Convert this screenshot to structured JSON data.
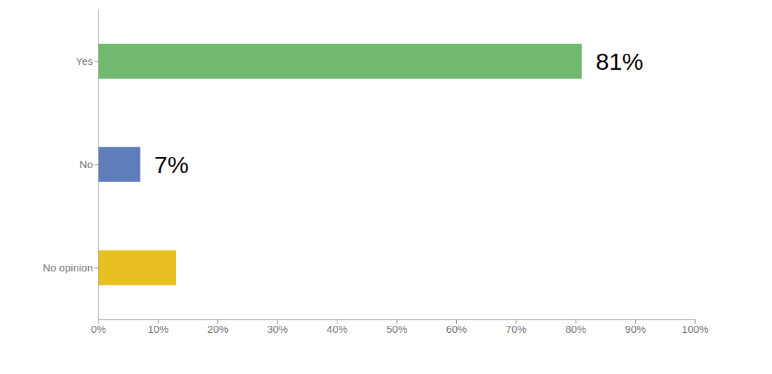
{
  "chart_data": {
    "type": "bar",
    "orientation": "horizontal",
    "categories": [
      "Yes",
      "No",
      "No opinion"
    ],
    "values": [
      81,
      7,
      13
    ],
    "value_labels": [
      "81%",
      "7%",
      null
    ],
    "data_labels": true,
    "colors": [
      "#70b96f",
      "#5f7dba",
      "#e9c021"
    ],
    "xlim": [
      0,
      100
    ],
    "xticks": [
      {
        "value": 0,
        "label": "0%"
      },
      {
        "value": 10,
        "label": "10%"
      },
      {
        "value": 20,
        "label": "20%"
      },
      {
        "value": 30,
        "label": "30%"
      },
      {
        "value": 40,
        "label": "40%"
      },
      {
        "value": 50,
        "label": "50%"
      },
      {
        "value": 60,
        "label": "60%"
      },
      {
        "value": 70,
        "label": "70%"
      },
      {
        "value": 80,
        "label": "80%"
      },
      {
        "value": 90,
        "label": "90%"
      },
      {
        "value": 100,
        "label": "100%"
      }
    ],
    "grid": false
  }
}
